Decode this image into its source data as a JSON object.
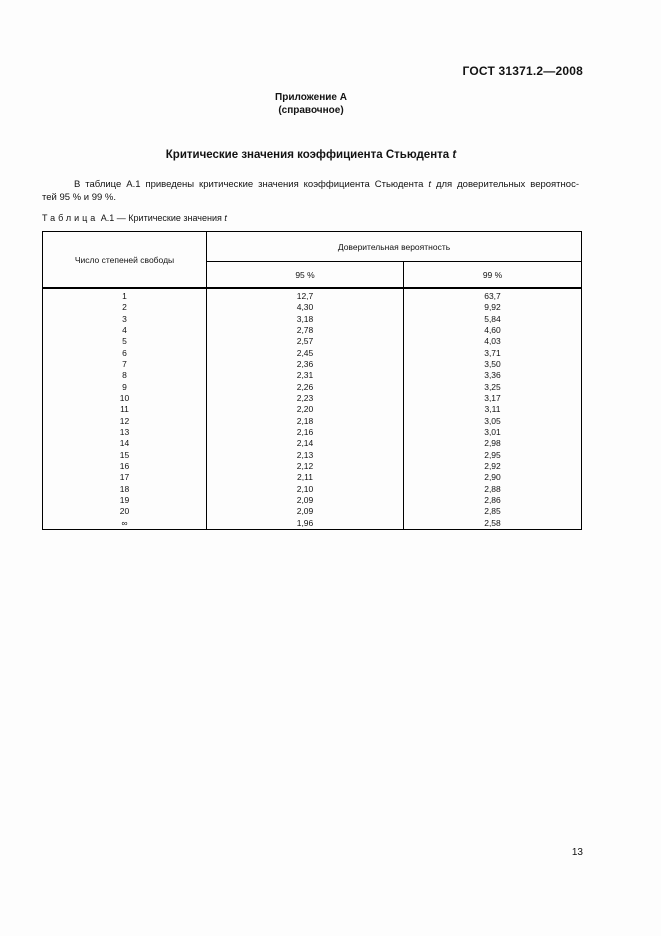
{
  "header": {
    "doc_number": "ГОСТ 31371.2—2008",
    "appendix_title": "Приложение А",
    "appendix_subtitle": "(справочное)"
  },
  "title": {
    "text": "Критические значения коэффициента Стьюдента",
    "var": "t"
  },
  "intro": {
    "line1_before": "В таблице А.1 приведены критические значения коэффициента Стьюдента ",
    "line1_var": "t",
    "line1_after": " для доверительных вероятнос-",
    "line2": "тей 95 % и 99 %."
  },
  "caption": {
    "label_spaced": "Таблица",
    "label_rest": " А.1 — Критические значения ",
    "var": "t"
  },
  "table": {
    "col1_header": "Число степеней свободы",
    "group_header": "Доверительная вероятность",
    "subheaders": [
      "95 %",
      "99 %"
    ],
    "rows": [
      {
        "df": "1",
        "p95": "12,7",
        "p99": "63,7"
      },
      {
        "df": "2",
        "p95": "4,30",
        "p99": "9,92"
      },
      {
        "df": "3",
        "p95": "3,18",
        "p99": "5,84"
      },
      {
        "df": "4",
        "p95": "2,78",
        "p99": "4,60"
      },
      {
        "df": "5",
        "p95": "2,57",
        "p99": "4,03"
      },
      {
        "df": "6",
        "p95": "2,45",
        "p99": "3,71"
      },
      {
        "df": "7",
        "p95": "2,36",
        "p99": "3,50"
      },
      {
        "df": "8",
        "p95": "2,31",
        "p99": "3,36"
      },
      {
        "df": "9",
        "p95": "2,26",
        "p99": "3,25"
      },
      {
        "df": "10",
        "p95": "2,23",
        "p99": "3,17"
      },
      {
        "df": "11",
        "p95": "2,20",
        "p99": "3,11"
      },
      {
        "df": "12",
        "p95": "2,18",
        "p99": "3,05"
      },
      {
        "df": "13",
        "p95": "2,16",
        "p99": "3,01"
      },
      {
        "df": "14",
        "p95": "2,14",
        "p99": "2,98"
      },
      {
        "df": "15",
        "p95": "2,13",
        "p99": "2,95"
      },
      {
        "df": "16",
        "p95": "2,12",
        "p99": "2,92"
      },
      {
        "df": "17",
        "p95": "2,11",
        "p99": "2,90"
      },
      {
        "df": "18",
        "p95": "2,10",
        "p99": "2,88"
      },
      {
        "df": "19",
        "p95": "2,09",
        "p99": "2,86"
      },
      {
        "df": "20",
        "p95": "2,09",
        "p99": "2,85"
      },
      {
        "df": "∞",
        "p95": "1,96",
        "p99": "2,58"
      }
    ]
  },
  "footer": {
    "page_number": "13"
  }
}
